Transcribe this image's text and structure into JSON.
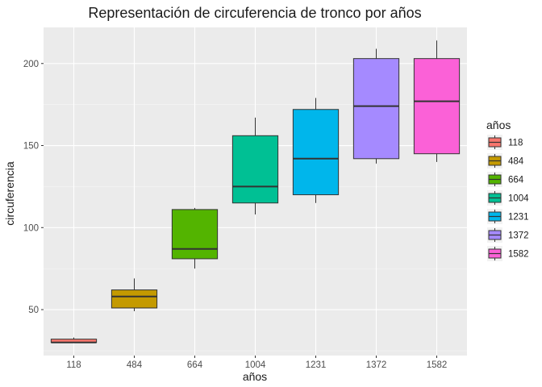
{
  "chart_data": {
    "type": "boxplot",
    "title": "Representación de circuferencia de tronco por años",
    "xlabel": "años",
    "ylabel": "circuferencia",
    "ylim": [
      22,
      222
    ],
    "yticks": [
      50,
      100,
      150,
      200
    ],
    "ytick_labels": [
      "50",
      "100",
      "150",
      "200"
    ],
    "grid": true,
    "legend": {
      "title": "años",
      "position": "right"
    },
    "categories": [
      "118",
      "484",
      "664",
      "1004",
      "1231",
      "1372",
      "1582"
    ],
    "series": [
      {
        "name": "118",
        "color": "#F8766D",
        "min": 30,
        "q1": 30,
        "median": 30,
        "q3": 32,
        "max": 33
      },
      {
        "name": "484",
        "color": "#C49A00",
        "min": 49,
        "q1": 51,
        "median": 58,
        "q3": 62,
        "max": 69
      },
      {
        "name": "664",
        "color": "#53B400",
        "min": 75,
        "q1": 81,
        "median": 87,
        "q3": 111,
        "max": 112
      },
      {
        "name": "1004",
        "color": "#00C094",
        "min": 108,
        "q1": 115,
        "median": 125,
        "q3": 156,
        "max": 167
      },
      {
        "name": "1231",
        "color": "#00B6EB",
        "min": 115,
        "q1": 120,
        "median": 142,
        "q3": 172,
        "max": 179
      },
      {
        "name": "1372",
        "color": "#A58AFF",
        "min": 139,
        "q1": 142,
        "median": 174,
        "q3": 203,
        "max": 209
      },
      {
        "name": "1582",
        "color": "#FB61D7",
        "min": 140,
        "q1": 145,
        "median": 177,
        "q3": 203,
        "max": 214
      }
    ]
  }
}
